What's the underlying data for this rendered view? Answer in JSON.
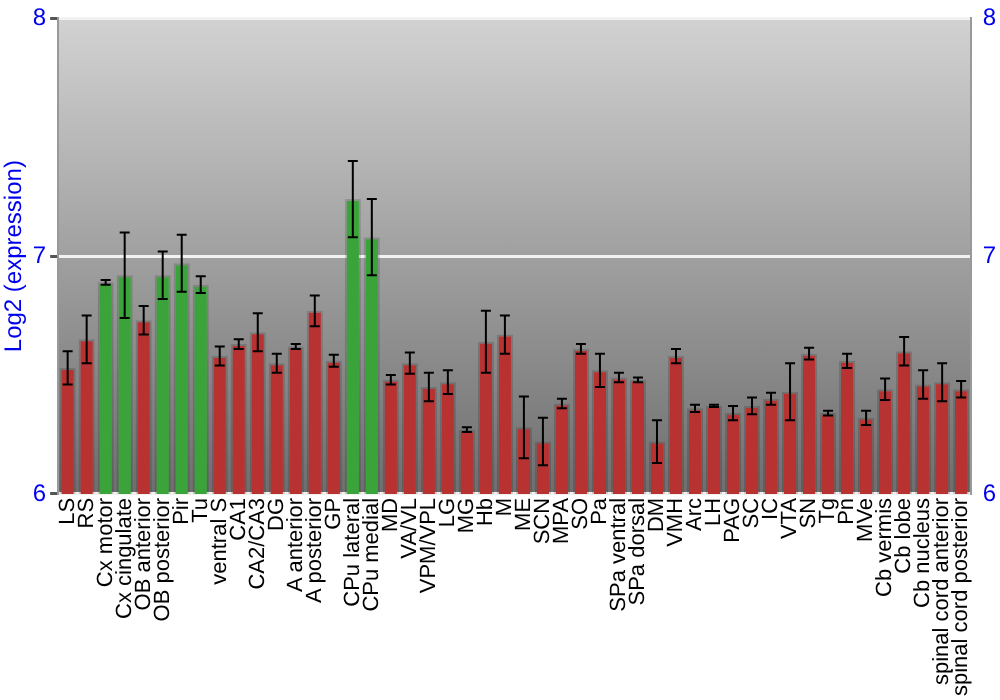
{
  "chart_data": {
    "type": "bar",
    "ylabel": "Log2 (expression)",
    "categories": [
      "LS",
      "RS",
      "Cx motor",
      "Cx cingulate",
      "OB anterior",
      "OB posterior",
      "Pir",
      "Tu",
      "ventral S",
      "CA1",
      "CA2/CA3",
      "DG",
      "A anterior",
      "A posterior",
      "GP",
      "CPu lateral",
      "CPu medial",
      "MD",
      "VA/VL",
      "VPM/VPL",
      "LG",
      "MG",
      "Hb",
      "M",
      "ME",
      "SCN",
      "MPA",
      "SO",
      "Pa",
      "SPa ventral",
      "SPa dorsal",
      "DM",
      "VMH",
      "Arc",
      "LH",
      "PAG",
      "SC",
      "IC",
      "VTA",
      "SN",
      "Tg",
      "Pn",
      "MVe",
      "Cb vermis",
      "Cb lobe",
      "Cb nucleus",
      "spinal cord anterior",
      "spinal cord posterior"
    ],
    "values": [
      6.53,
      6.65,
      6.89,
      6.92,
      6.73,
      6.92,
      6.97,
      6.88,
      6.58,
      6.63,
      6.68,
      6.55,
      6.62,
      6.77,
      6.56,
      7.24,
      7.08,
      6.48,
      6.55,
      6.45,
      6.47,
      6.27,
      6.64,
      6.67,
      6.28,
      6.22,
      6.38,
      6.61,
      6.52,
      6.49,
      6.48,
      6.22,
      6.58,
      6.36,
      6.37,
      6.34,
      6.37,
      6.4,
      6.43,
      6.59,
      6.34,
      6.56,
      6.32,
      6.44,
      6.6,
      6.46,
      6.47,
      6.44
    ],
    "errors": [
      0.07,
      0.1,
      0.01,
      0.18,
      0.06,
      0.1,
      0.12,
      0.035,
      0.04,
      0.02,
      0.08,
      0.04,
      0.01,
      0.065,
      0.025,
      0.16,
      0.16,
      0.02,
      0.045,
      0.06,
      0.05,
      0.01,
      0.13,
      0.08,
      0.13,
      0.1,
      0.02,
      0.02,
      0.07,
      0.02,
      0.01,
      0.09,
      0.03,
      0.015,
      0.005,
      0.03,
      0.035,
      0.025,
      0.12,
      0.025,
      0.01,
      0.03,
      0.03,
      0.045,
      0.06,
      0.06,
      0.08,
      0.035
    ],
    "colors": [
      "#b83232",
      "#b83232",
      "#3aa33a",
      "#3aa33a",
      "#b83232",
      "#3aa33a",
      "#3aa33a",
      "#3aa33a",
      "#b83232",
      "#b83232",
      "#b83232",
      "#b83232",
      "#b83232",
      "#b83232",
      "#b83232",
      "#3aa33a",
      "#3aa33a",
      "#b83232",
      "#b83232",
      "#b83232",
      "#b83232",
      "#b83232",
      "#b83232",
      "#b83232",
      "#b83232",
      "#b83232",
      "#b83232",
      "#b83232",
      "#b83232",
      "#b83232",
      "#b83232",
      "#b83232",
      "#b83232",
      "#b83232",
      "#b83232",
      "#b83232",
      "#b83232",
      "#b83232",
      "#b83232",
      "#b83232",
      "#b83232",
      "#b83232",
      "#b83232",
      "#b83232",
      "#b83232",
      "#b83232",
      "#b83232",
      "#b83232"
    ],
    "ylim": [
      6,
      8
    ],
    "yticks": [
      6,
      7,
      8
    ],
    "y2lim": [
      6,
      8
    ],
    "y2ticks": [
      6,
      7,
      8
    ],
    "grid": "y",
    "legend": false
  }
}
